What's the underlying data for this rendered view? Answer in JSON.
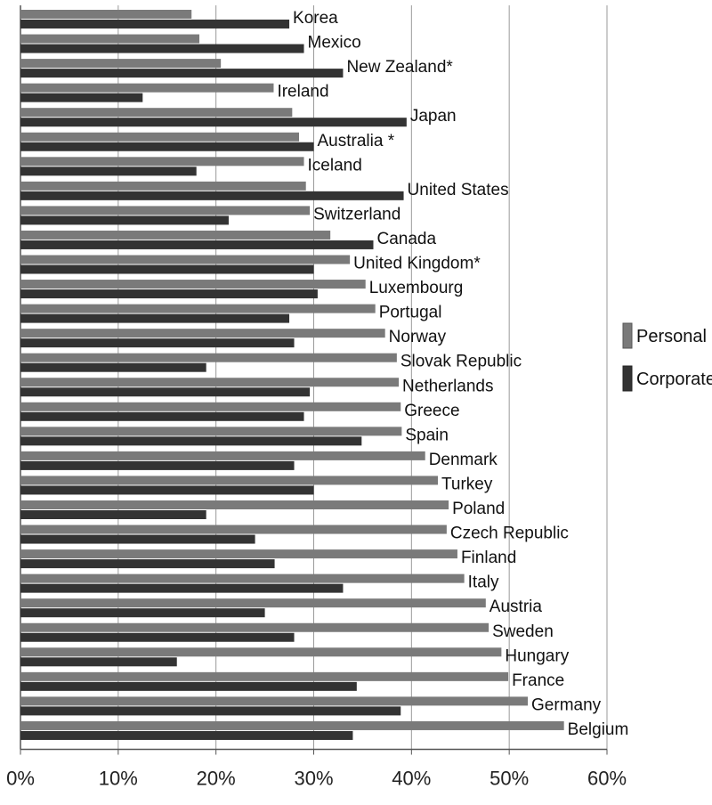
{
  "chart_data": {
    "type": "bar",
    "orientation": "horizontal",
    "categories": [
      "Korea",
      "Mexico",
      "New Zealand*",
      "Ireland",
      "Japan",
      "Australia *",
      "Iceland",
      "United States",
      "Switzerland",
      "Canada",
      "United Kingdom*",
      "Luxembourg",
      "Portugal",
      "Norway",
      "Slovak Republic",
      "Netherlands",
      "Greece",
      "Spain",
      "Denmark",
      "Turkey",
      "Poland",
      "Czech Republic",
      "Finland",
      "Italy",
      "Austria",
      "Sweden",
      "Hungary",
      "France",
      "Germany",
      "Belgium"
    ],
    "series": [
      {
        "name": "Personal",
        "color": "#7a7a7a",
        "values": [
          17.5,
          18.3,
          20.5,
          25.9,
          27.8,
          28.5,
          29.0,
          29.2,
          29.6,
          31.7,
          33.7,
          35.3,
          36.3,
          37.3,
          38.5,
          38.7,
          38.9,
          39.0,
          41.4,
          42.7,
          43.8,
          43.6,
          44.7,
          45.4,
          47.6,
          47.9,
          49.2,
          49.9,
          51.9,
          55.6
        ],
        "note": ""
      },
      {
        "name": "Corporate",
        "color": "#333333",
        "values": [
          27.5,
          29.0,
          33.0,
          12.5,
          39.5,
          30.0,
          18.0,
          39.2,
          21.3,
          36.1,
          30.0,
          30.4,
          27.5,
          28.0,
          19.0,
          29.6,
          29.0,
          34.9,
          28.0,
          30.0,
          19.0,
          24.0,
          26.0,
          33.0,
          25.0,
          28.0,
          16.0,
          34.4,
          38.9,
          34.0
        ]
      }
    ],
    "x_ticks": [
      "0%",
      "10%",
      "20%",
      "30%",
      "40%",
      "50%",
      "60%"
    ],
    "xlim": [
      0,
      60
    ],
    "grid": true,
    "legend_position": "right",
    "title": "",
    "xlabel": "",
    "ylabel": ""
  }
}
